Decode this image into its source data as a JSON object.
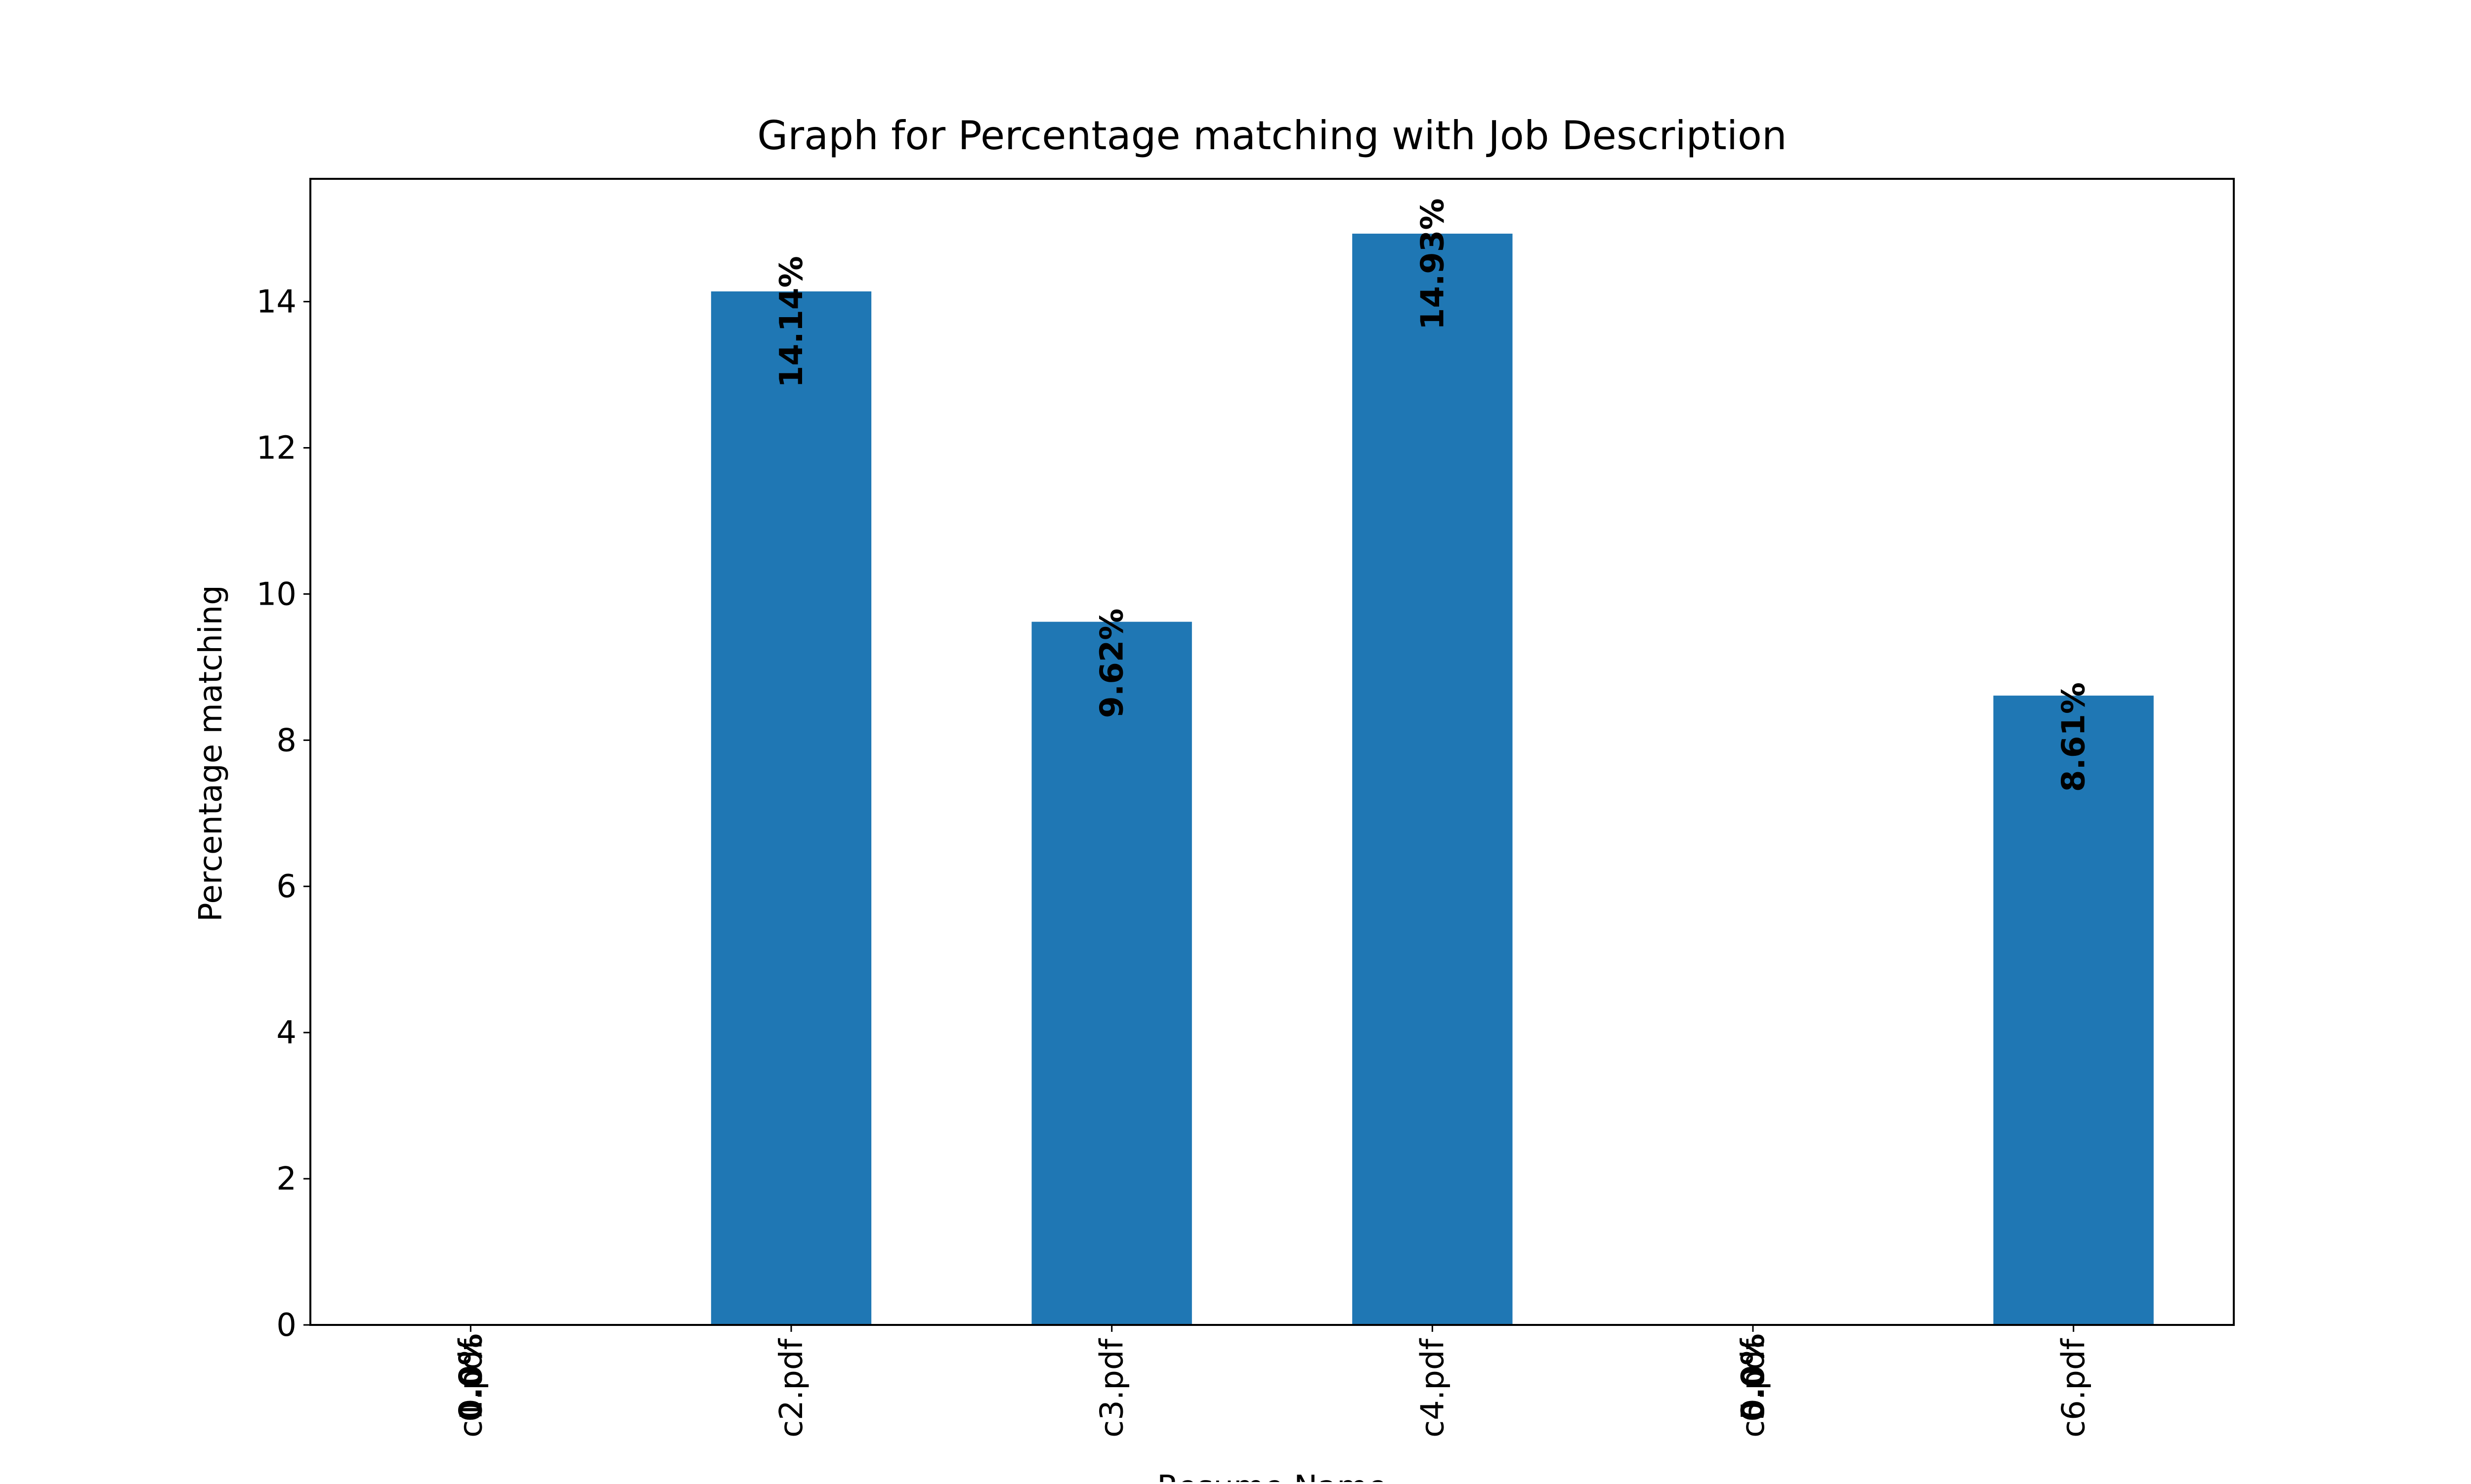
{
  "chart_data": {
    "type": "bar",
    "title": "Graph for Percentage matching with Job Description",
    "xlabel": "Resume Name",
    "ylabel": "Percentage matching",
    "categories": [
      "c1.pdf",
      "c2.pdf",
      "c3.pdf",
      "c4.pdf",
      "c5.pdf",
      "c6.pdf"
    ],
    "values": [
      0.0,
      14.14,
      9.62,
      14.93,
      0.0,
      8.61
    ],
    "data_labels": [
      "0.0%",
      "14.14%",
      "9.62%",
      "14.93%",
      "0.0%",
      "8.61%"
    ],
    "yticks": [
      0,
      2,
      4,
      6,
      8,
      10,
      12,
      14
    ],
    "ylim": [
      0,
      15.68
    ],
    "grid": false,
    "legend": "none",
    "bar_color": "#1f77b4",
    "text_color": "#000000",
    "background": "#ffffff"
  }
}
